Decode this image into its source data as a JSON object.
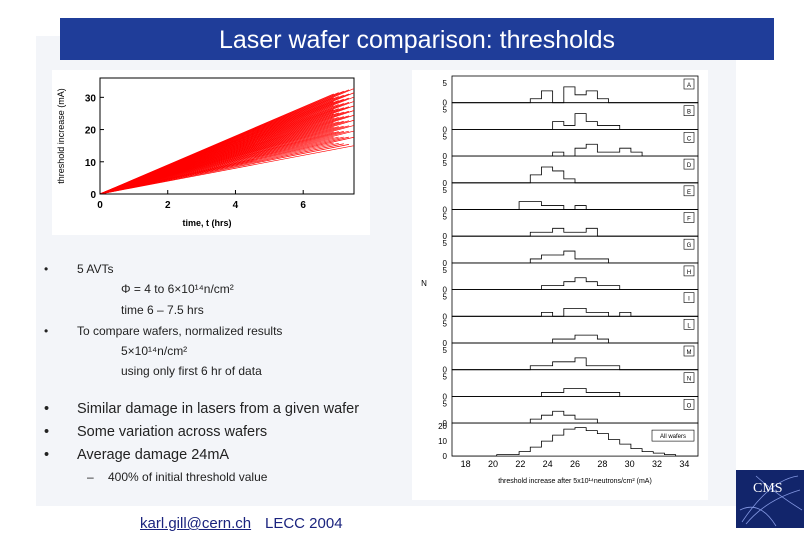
{
  "title": "Laser wafer comparison: thresholds",
  "colors": {
    "title_bar": "#1f3d99",
    "curves": "#ff0000",
    "footer_text": "#1a237e"
  },
  "chart_data": [
    {
      "type": "line",
      "title": "",
      "xlabel": "time, t (hrs)",
      "ylabel": "threshold increase (mA)",
      "xlim": [
        0,
        7.5
      ],
      "ylim": [
        0,
        36
      ],
      "x_ticks": [
        "0",
        "2",
        "4",
        "6"
      ],
      "y_ticks": [
        "0",
        "10",
        "20",
        "30"
      ],
      "series_count": 60,
      "x": [
        0,
        7.5
      ],
      "slope_range_mA_per_hr": [
        2.0,
        4.5
      ],
      "grid": false
    },
    {
      "type": "bar",
      "title": "",
      "xlabel": "threshold increase after 5x10¹⁴neutrons/cm² (mA)",
      "ylabel": "N",
      "x_ticks": [
        "18",
        "20",
        "22",
        "24",
        "26",
        "28",
        "30",
        "32",
        "34"
      ],
      "panels": [
        {
          "label": "A",
          "y_ticks": [
            "5",
            "0"
          ],
          "counts": [
            0,
            0,
            0,
            0,
            0,
            0,
            0,
            1,
            3,
            0,
            4,
            2,
            3,
            1,
            0,
            0,
            0,
            0,
            0,
            0,
            0,
            0
          ]
        },
        {
          "label": "B",
          "y_ticks": [
            "5",
            "0"
          ],
          "counts": [
            0,
            0,
            0,
            0,
            0,
            0,
            0,
            0,
            0,
            2,
            1,
            4,
            2,
            1,
            1,
            0,
            0,
            0,
            0,
            0,
            0,
            0
          ]
        },
        {
          "label": "C",
          "y_ticks": [
            "5",
            "0"
          ],
          "counts": [
            0,
            0,
            0,
            0,
            0,
            0,
            0,
            0,
            0,
            1,
            0,
            2,
            3,
            1,
            1,
            2,
            1,
            0,
            0,
            0,
            0,
            0
          ]
        },
        {
          "label": "D",
          "y_ticks": [
            "5",
            "0"
          ],
          "counts": [
            0,
            0,
            0,
            0,
            0,
            0,
            0,
            2,
            4,
            3,
            1,
            0,
            0,
            0,
            0,
            0,
            0,
            0,
            0,
            0,
            0,
            0
          ]
        },
        {
          "label": "E",
          "y_ticks": [
            "5",
            "0"
          ],
          "counts": [
            0,
            0,
            0,
            0,
            0,
            0,
            2,
            2,
            1,
            1,
            0,
            1,
            0,
            0,
            0,
            0,
            0,
            0,
            0,
            0,
            0,
            0
          ]
        },
        {
          "label": "F",
          "y_ticks": [
            "5",
            "0"
          ],
          "counts": [
            0,
            0,
            0,
            0,
            0,
            0,
            0,
            1,
            1,
            2,
            1,
            1,
            2,
            0,
            0,
            0,
            0,
            0,
            0,
            0,
            0,
            0
          ]
        },
        {
          "label": "G",
          "y_ticks": [
            "5",
            "0"
          ],
          "counts": [
            0,
            0,
            0,
            0,
            0,
            0,
            0,
            1,
            2,
            2,
            3,
            1,
            1,
            1,
            0,
            0,
            0,
            0,
            0,
            0,
            0,
            0
          ]
        },
        {
          "label": "H",
          "y_ticks": [
            "5",
            "0"
          ],
          "counts": [
            0,
            0,
            0,
            0,
            0,
            0,
            0,
            0,
            1,
            1,
            2,
            3,
            2,
            1,
            1,
            0,
            0,
            0,
            0,
            0,
            0,
            0
          ]
        },
        {
          "label": "I",
          "y_ticks": [
            "5",
            "0"
          ],
          "counts": [
            0,
            0,
            0,
            0,
            0,
            0,
            0,
            0,
            1,
            0,
            2,
            2,
            1,
            1,
            0,
            1,
            0,
            0,
            0,
            0,
            0,
            0
          ]
        },
        {
          "label": "L",
          "y_ticks": [
            "5",
            "0"
          ],
          "counts": [
            0,
            0,
            0,
            0,
            0,
            0,
            0,
            0,
            0,
            1,
            1,
            2,
            2,
            1,
            0,
            0,
            0,
            0,
            0,
            0,
            0,
            0
          ]
        },
        {
          "label": "M",
          "y_ticks": [
            "5",
            "0"
          ],
          "counts": [
            0,
            0,
            0,
            0,
            0,
            0,
            0,
            1,
            1,
            2,
            2,
            3,
            1,
            1,
            1,
            0,
            0,
            0,
            0,
            0,
            0,
            0
          ]
        },
        {
          "label": "N",
          "y_ticks": [
            "5",
            "0"
          ],
          "counts": [
            0,
            0,
            0,
            0,
            0,
            0,
            0,
            0,
            1,
            1,
            2,
            2,
            1,
            1,
            1,
            0,
            0,
            0,
            0,
            0,
            0,
            0
          ]
        },
        {
          "label": "O",
          "y_ticks": [
            "5",
            "0"
          ],
          "counts": [
            0,
            0,
            0,
            0,
            0,
            0,
            0,
            1,
            2,
            3,
            2,
            1,
            1,
            0,
            0,
            0,
            0,
            0,
            0,
            0,
            0,
            0
          ]
        },
        {
          "label": "All wafers",
          "y_ticks": [
            "20",
            "10",
            "0"
          ],
          "counts": [
            0,
            0,
            0,
            0,
            1,
            1,
            3,
            6,
            10,
            14,
            18,
            19,
            17,
            15,
            11,
            8,
            5,
            3,
            2,
            1,
            0,
            0
          ],
          "ymax": 20
        }
      ],
      "hist_xlim": [
        17,
        35
      ]
    }
  ],
  "bullets": {
    "b1": "5 AVTs",
    "b1_sub1": "Φ = 4 to 6×10¹⁴n/cm²",
    "b1_sub2": "time 6 – 7.5 hrs",
    "b2": "To compare wafers, normalized results",
    "b2_sub1": "5×10¹⁴n/cm²",
    "b2_sub2": "using only first 6 hr of data",
    "b3": "Similar damage in lasers from a given wafer",
    "b4": "Some variation across wafers",
    "b5": "Average damage 24mA",
    "b5_sub": "400% of initial threshold value",
    "marker": "•",
    "dash": "–"
  },
  "footer": {
    "email": "karl.gill@cern.ch",
    "conference": "LECC 2004"
  },
  "logo": {
    "text": "CMS"
  }
}
